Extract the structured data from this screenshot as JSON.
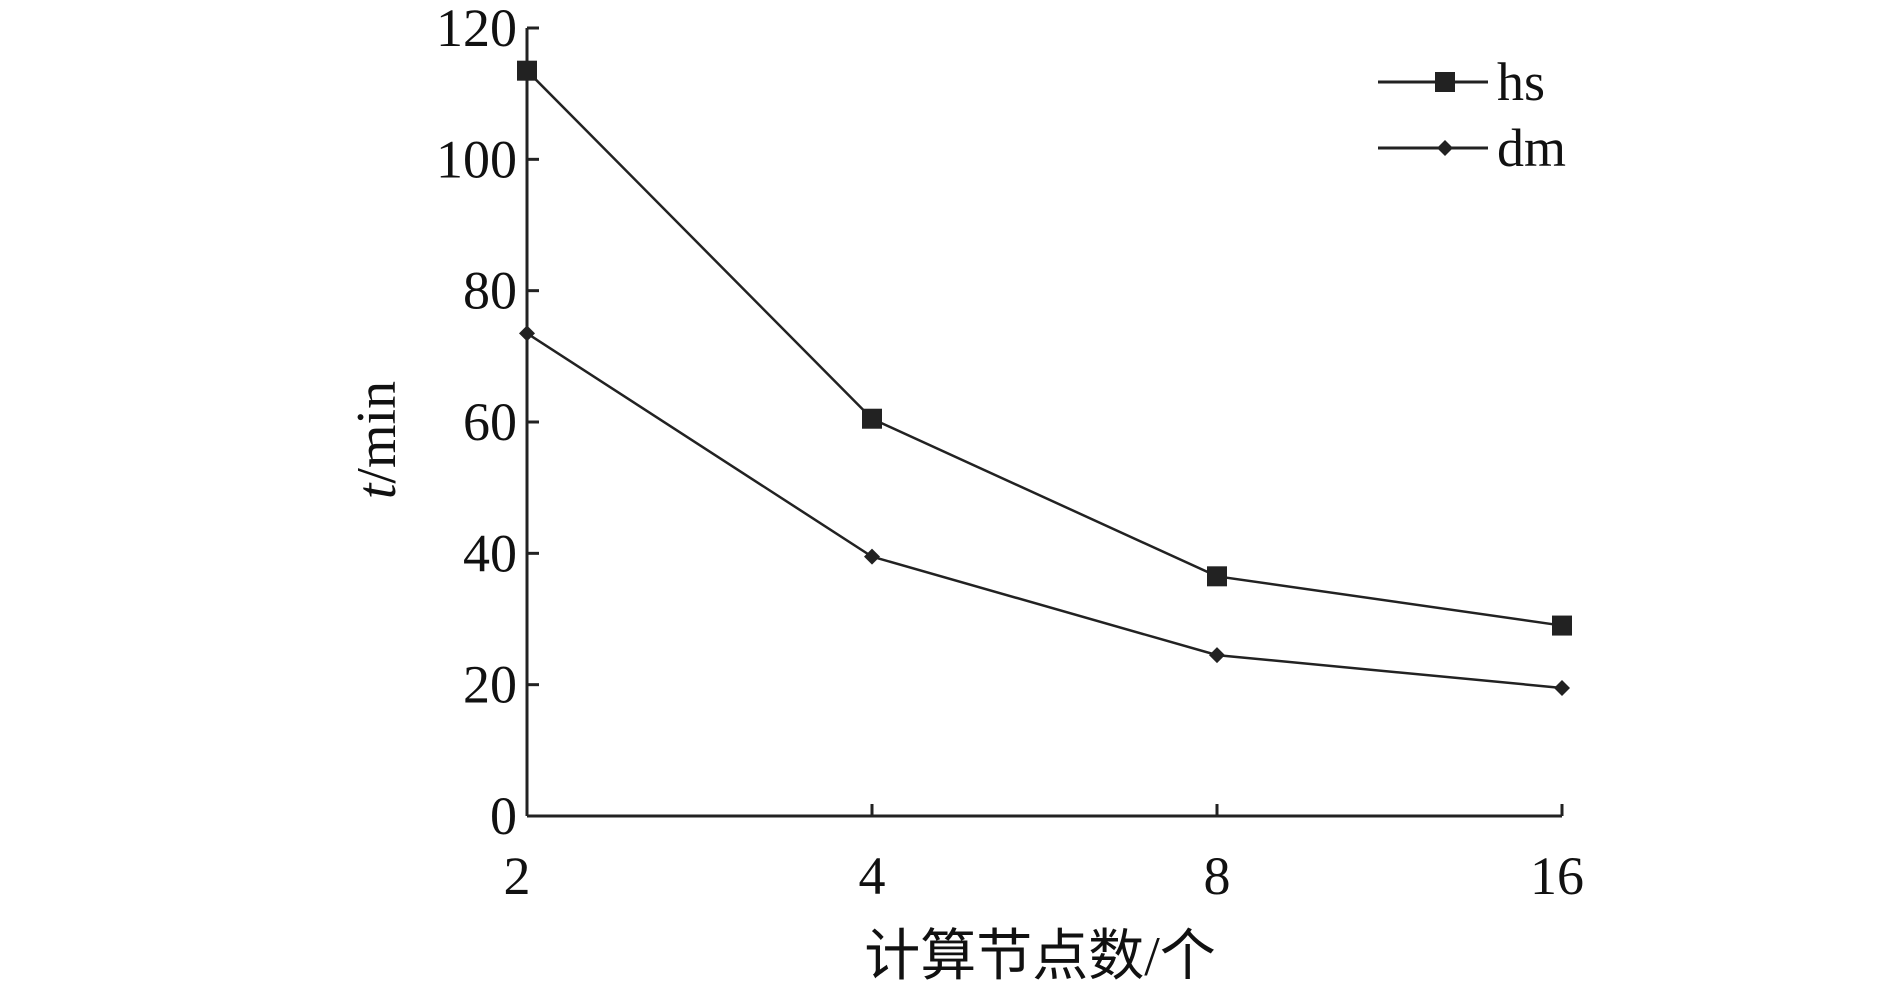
{
  "chart_data": {
    "type": "line",
    "title": "",
    "xlabel": "计算节点数/个",
    "ylabel_italic": "t",
    "ylabel_rest": "/min",
    "categories": [
      "2",
      "4",
      "8",
      "16"
    ],
    "yticks": [
      "0",
      "20",
      "40",
      "60",
      "80",
      "100",
      "120"
    ],
    "ylim": [
      0,
      120
    ],
    "grid": false,
    "legend_position": "top-right",
    "series": [
      {
        "name": "hs",
        "marker": "square",
        "values": [
          113.5,
          60.5,
          36.5,
          29
        ]
      },
      {
        "name": "dm",
        "marker": "diamond",
        "values": [
          73.5,
          39.5,
          24.5,
          19.5
        ]
      }
    ],
    "line_color": "#222222"
  }
}
